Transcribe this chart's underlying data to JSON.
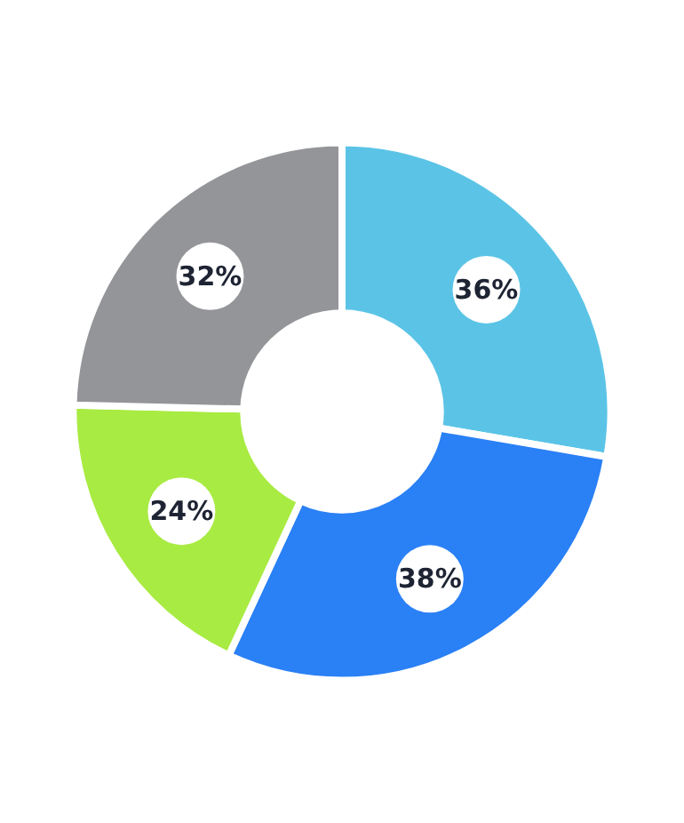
{
  "chart_data": {
    "type": "donut",
    "categories": [
      null,
      null,
      null,
      null
    ],
    "values": [
      36,
      38,
      24,
      32
    ],
    "value_labels": [
      "36%",
      "38%",
      "24%",
      "32%"
    ],
    "colors": [
      "#5bc4e6",
      "#2a80f5",
      "#a8eb42",
      "#939598"
    ]
  }
}
